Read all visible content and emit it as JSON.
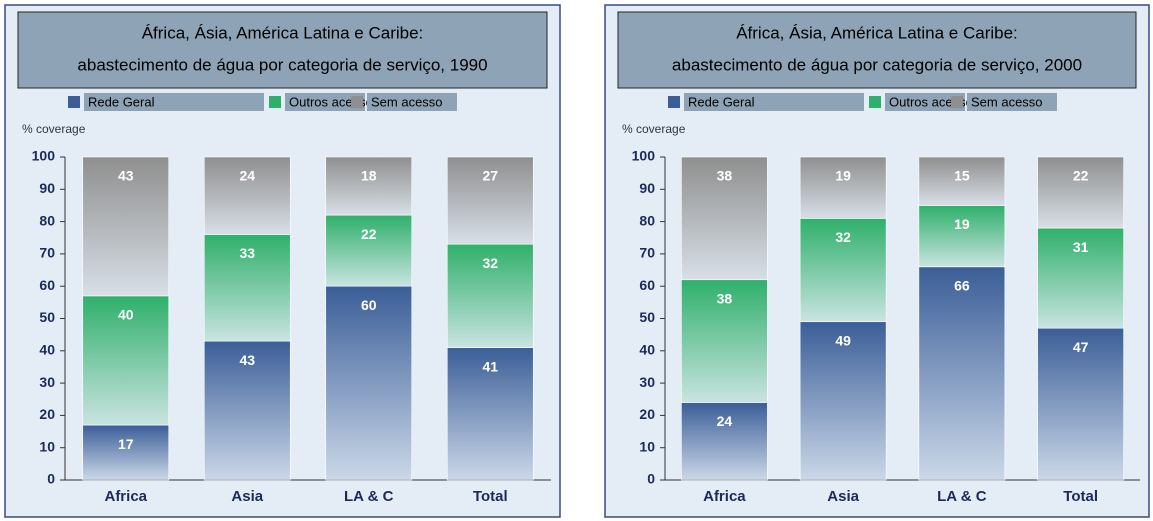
{
  "chart_data": [
    {
      "type": "stacked_bar",
      "title": "África, Ásia, América Latina e Caribe:",
      "subtitle": "abastecimento de água por categoria de serviço, 1990",
      "ylabel": "% coverage",
      "categories": [
        "Africa",
        "Asia",
        "LA & C",
        "Total"
      ],
      "series": [
        {
          "name": "Rede Geral",
          "color": "#3b5e98",
          "values": [
            17,
            43,
            60,
            41
          ]
        },
        {
          "name": "Outros acessos",
          "color": "#2fb06a",
          "values": [
            40,
            33,
            22,
            32
          ]
        },
        {
          "name": "Sem acesso",
          "color": "#8f8f8f",
          "values": [
            43,
            24,
            18,
            27
          ]
        }
      ],
      "ylim": [
        0,
        100
      ],
      "yticks": [
        0,
        10,
        20,
        30,
        40,
        50,
        60,
        70,
        80,
        90,
        100
      ],
      "legend": "top"
    },
    {
      "type": "stacked_bar",
      "title": "África, Ásia, América Latina e Caribe:",
      "subtitle": "abastecimento de água por categoria de serviço, 2000",
      "ylabel": "% coverage",
      "categories": [
        "Africa",
        "Asia",
        "LA & C",
        "Total"
      ],
      "series": [
        {
          "name": "Rede Geral",
          "color": "#3b5e98",
          "values": [
            24,
            49,
            66,
            47
          ]
        },
        {
          "name": "Outros acessos",
          "color": "#2fb06a",
          "values": [
            38,
            32,
            19,
            31
          ]
        },
        {
          "name": "Sem acesso",
          "color": "#8f8f8f",
          "values": [
            38,
            19,
            15,
            22
          ]
        }
      ],
      "ylim": [
        0,
        100
      ],
      "yticks": [
        0,
        10,
        20,
        30,
        40,
        50,
        60,
        70,
        80,
        90,
        100
      ],
      "legend": "top"
    }
  ]
}
